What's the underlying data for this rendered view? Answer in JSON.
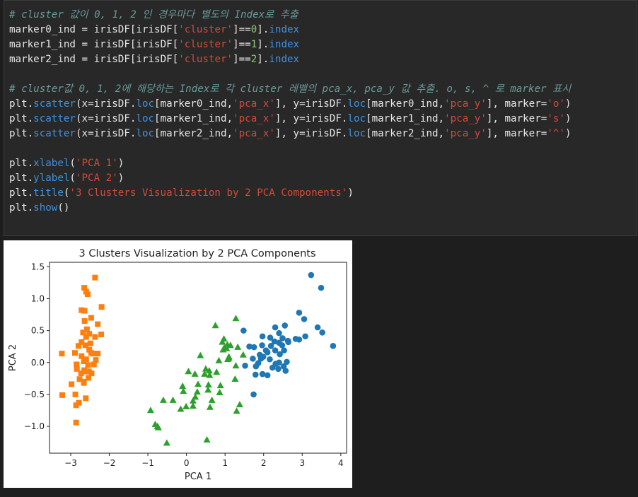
{
  "code": {
    "comment1": "# cluster 값이 0, 1, 2 인 경우마다 별도의 Index로 추출",
    "comment2": "# cluster값 0, 1, 2에 해당하는 Index로 각 cluster 레벨의 pca_x, pca_y 값 추출. o, s, ^ 로 marker 표시",
    "var_marker0": "marker0_ind",
    "var_marker1": "marker1_ind",
    "var_marker2": "marker2_ind",
    "df": "irisDF",
    "str_cluster": "'cluster'",
    "str_pca_x": "'pca_x'",
    "str_pca_y": "'pca_y'",
    "str_o": "'o'",
    "str_s": "'s'",
    "str_tri": "'^'",
    "str_xlabel": "'PCA 1'",
    "str_ylabel": "'PCA 2'",
    "str_title": "'3 Clusters Visualization by 2 PCA Components'",
    "attr_index": "index",
    "attr_loc": "loc",
    "fn_scatter": "scatter",
    "fn_xlabel": "xlabel",
    "fn_ylabel": "ylabel",
    "fn_title": "title",
    "fn_show": "show",
    "plt": "plt",
    "kw_x": "x",
    "kw_y": "y",
    "kw_marker": "marker"
  },
  "chart_data": {
    "type": "scatter",
    "title": "3 Clusters Visualization by 2 PCA Components",
    "xlabel": "PCA 1",
    "ylabel": "PCA 2",
    "xlim": [
      -3.55,
      4.15
    ],
    "ylim": [
      -1.42,
      1.57
    ],
    "xticks": [
      -3,
      -2,
      -1,
      0,
      1,
      2,
      3,
      4
    ],
    "xtick_labels": [
      "−3",
      "−2",
      "−1",
      "0",
      "1",
      "2",
      "3",
      "4"
    ],
    "yticks": [
      -1.0,
      -0.5,
      0.0,
      0.5,
      1.0,
      1.5
    ],
    "ytick_labels": [
      "−1.0",
      "−0.5",
      "0.0",
      "0.5",
      "1.0",
      "1.5"
    ],
    "grid": false,
    "series": [
      {
        "marker": "o",
        "color": "#1f77b4",
        "points": [
          [
            3.23,
            1.37
          ],
          [
            3.49,
            1.17
          ],
          [
            3.8,
            0.26
          ],
          [
            3.05,
            0.68
          ],
          [
            3.4,
            0.55
          ],
          [
            3.52,
            0.47
          ],
          [
            2.92,
            0.78
          ],
          [
            3.08,
            0.41
          ],
          [
            2.55,
            0.58
          ],
          [
            2.3,
            0.55
          ],
          [
            1.48,
            0.5
          ],
          [
            1.63,
            0.25
          ],
          [
            1.75,
            0.24
          ],
          [
            1.97,
            0.41
          ],
          [
            2.17,
            0.39
          ],
          [
            2.4,
            0.46
          ],
          [
            2.49,
            0.38
          ],
          [
            2.28,
            0.33
          ],
          [
            2.4,
            0.31
          ],
          [
            2.63,
            0.34
          ],
          [
            2.19,
            0.26
          ],
          [
            2.48,
            0.27
          ],
          [
            2.83,
            0.37
          ],
          [
            2.92,
            0.36
          ],
          [
            1.96,
            0.27
          ],
          [
            2.06,
            0.19
          ],
          [
            1.9,
            0.12
          ],
          [
            2.1,
            0.16
          ],
          [
            2.3,
            0.19
          ],
          [
            2.53,
            0.19
          ],
          [
            2.42,
            0.13
          ],
          [
            2.64,
            0.32
          ],
          [
            1.93,
            0.06
          ],
          [
            2.16,
            0.05
          ],
          [
            1.86,
            -0.01
          ],
          [
            1.72,
            0.06
          ],
          [
            2.31,
            -0.02
          ],
          [
            2.6,
            0.01
          ],
          [
            1.97,
            -0.18
          ],
          [
            2.1,
            -0.2
          ],
          [
            1.79,
            -0.19
          ],
          [
            2.38,
            -0.1
          ],
          [
            2.23,
            -0.08
          ],
          [
            2.57,
            -0.13
          ],
          [
            2.4,
            0.0
          ],
          [
            2.52,
            -0.06
          ],
          [
            1.52,
            -0.05
          ],
          [
            1.8,
            -0.06
          ],
          [
            1.74,
            -0.5
          ],
          [
            1.99,
            0.09
          ]
        ]
      },
      {
        "marker": "s",
        "color": "#ff7f0e",
        "points": [
          [
            -2.37,
            1.33
          ],
          [
            -2.65,
            1.17
          ],
          [
            -2.6,
            1.11
          ],
          [
            -2.56,
            1.07
          ],
          [
            -2.72,
            0.82
          ],
          [
            -2.64,
            0.81
          ],
          [
            -2.2,
            0.87
          ],
          [
            -2.47,
            0.7
          ],
          [
            -2.64,
            0.65
          ],
          [
            -2.3,
            0.6
          ],
          [
            -2.58,
            0.52
          ],
          [
            -2.68,
            0.47
          ],
          [
            -2.52,
            0.45
          ],
          [
            -2.21,
            0.44
          ],
          [
            -2.6,
            0.4
          ],
          [
            -2.37,
            0.4
          ],
          [
            -2.72,
            0.32
          ],
          [
            -2.49,
            0.3
          ],
          [
            -2.62,
            0.27
          ],
          [
            -2.8,
            0.26
          ],
          [
            -2.52,
            0.2
          ],
          [
            -2.47,
            0.15
          ],
          [
            -2.3,
            0.14
          ],
          [
            -2.42,
            0.14
          ],
          [
            -2.72,
            0.1
          ],
          [
            -2.6,
            0.05
          ],
          [
            -2.66,
            0.02
          ],
          [
            -2.35,
            0.04
          ],
          [
            -3.23,
            0.14
          ],
          [
            -2.89,
            0.15
          ],
          [
            -2.55,
            -0.04
          ],
          [
            -2.85,
            -0.03
          ],
          [
            -2.65,
            -0.12
          ],
          [
            -2.4,
            -0.03
          ],
          [
            -2.53,
            -0.14
          ],
          [
            -2.84,
            -0.1
          ],
          [
            -2.6,
            -0.14
          ],
          [
            -2.73,
            -0.17
          ],
          [
            -2.46,
            -0.17
          ],
          [
            -2.66,
            -0.3
          ],
          [
            -2.77,
            -0.26
          ],
          [
            -2.66,
            -0.32
          ],
          [
            -2.54,
            -0.24
          ],
          [
            -2.98,
            -0.34
          ],
          [
            -2.88,
            -0.5
          ],
          [
            -3.22,
            -0.51
          ],
          [
            -2.61,
            -0.56
          ],
          [
            -2.86,
            -0.67
          ],
          [
            -2.79,
            -0.63
          ],
          [
            -2.86,
            -0.94
          ]
        ]
      },
      {
        "marker": "^",
        "color": "#2ca02c",
        "points": [
          [
            1.28,
            0.69
          ],
          [
            0.93,
            0.32
          ],
          [
            1.33,
            0.24
          ],
          [
            0.56,
            -0.43
          ],
          [
            1.1,
            0.07
          ],
          [
            0.6,
            -0.2
          ],
          [
            1.06,
            0.28
          ],
          [
            -0.75,
            -1.0
          ],
          [
            1.04,
            0.22
          ],
          [
            -0.01,
            -0.69
          ],
          [
            -0.51,
            -1.26
          ],
          [
            0.5,
            -0.1
          ],
          [
            0.23,
            -0.54
          ],
          [
            1.1,
            0.09
          ],
          [
            -0.1,
            -0.37
          ],
          [
            0.95,
            0.2
          ],
          [
            0.57,
            -0.35
          ],
          [
            0.17,
            -0.68
          ],
          [
            1.26,
            -0.26
          ],
          [
            0.28,
            -0.46
          ],
          [
            0.75,
            0.58
          ],
          [
            0.36,
            0.11
          ],
          [
            1.28,
            -0.05
          ],
          [
            0.97,
            0.37
          ],
          [
            0.84,
            0.03
          ],
          [
            0.98,
            0.23
          ],
          [
            1.47,
            0.12
          ],
          [
            1.14,
            0.27
          ],
          [
            0.78,
            -0.15
          ],
          [
            -0.15,
            -0.73
          ],
          [
            -0.6,
            -0.59
          ],
          [
            0.3,
            -0.34
          ],
          [
            0.17,
            -0.6
          ],
          [
            0.88,
            -0.36
          ],
          [
            0.22,
            -0.18
          ],
          [
            0.61,
            -0.7
          ],
          [
            1.07,
            0.05
          ],
          [
            0.86,
            -0.47
          ],
          [
            -0.08,
            -0.45
          ],
          [
            -0.93,
            -0.75
          ],
          [
            -0.35,
            -0.59
          ],
          [
            0.05,
            -0.14
          ],
          [
            -0.73,
            -1.02
          ],
          [
            0.66,
            -0.59
          ],
          [
            1.38,
            -0.66
          ],
          [
            0.47,
            -0.18
          ],
          [
            0.53,
            -1.21
          ],
          [
            0.59,
            -0.13
          ],
          [
            -0.81,
            -0.97
          ],
          [
            1.3,
            -0.76
          ]
        ]
      }
    ]
  }
}
